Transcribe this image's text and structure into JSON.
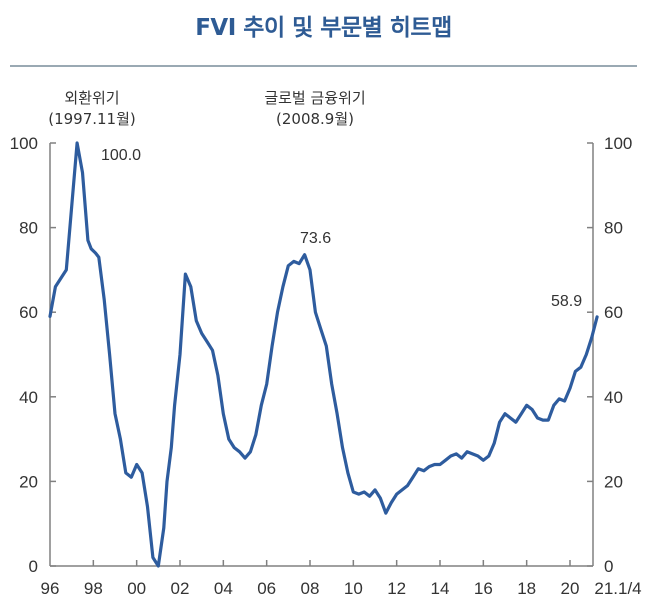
{
  "title": "FVI 추이 및 부문별 히트맵",
  "colors": {
    "line": "#2e5c9e",
    "title": "#2e5b94",
    "axis": "#808080"
  },
  "annotations": [
    {
      "line1": "외환위기",
      "line2": "(1997.11월)"
    },
    {
      "line1": "글로벌 금융위기",
      "line2": "(2008.9월)"
    }
  ],
  "value_labels": [
    "100.0",
    "73.6",
    "58.9"
  ],
  "chart_data": {
    "type": "line",
    "title": "FVI 추이 및 부문별 히트맵",
    "xlabel": "",
    "ylabel": "",
    "ylim": [
      0,
      100
    ],
    "xlim": [
      1996,
      2021.25
    ],
    "y_ticks": [
      "0",
      "20",
      "40",
      "60",
      "80",
      "100"
    ],
    "y_ticks_right": [
      "0",
      "20",
      "40",
      "60",
      "80",
      "100"
    ],
    "x_ticks": [
      {
        "v": 1996,
        "label": "96"
      },
      {
        "v": 1998,
        "label": "98"
      },
      {
        "v": 2000,
        "label": "00"
      },
      {
        "v": 2002,
        "label": "02"
      },
      {
        "v": 2004,
        "label": "04"
      },
      {
        "v": 2006,
        "label": "06"
      },
      {
        "v": 2008,
        "label": "08"
      },
      {
        "v": 2010,
        "label": "10"
      },
      {
        "v": 2012,
        "label": "12"
      },
      {
        "v": 2014,
        "label": "14"
      },
      {
        "v": 2016,
        "label": "16"
      },
      {
        "v": 2018,
        "label": "18"
      },
      {
        "v": 2020,
        "label": "20"
      },
      {
        "v": 2021.25,
        "label": "21.1/4"
      }
    ],
    "grid": false,
    "series": [
      {
        "name": "FVI",
        "x": [
          1996.0,
          1996.25,
          1996.5,
          1996.75,
          1997.0,
          1997.25,
          1997.5,
          1997.75,
          1997.9,
          1998.1,
          1998.25,
          1998.5,
          1998.75,
          1999.0,
          1999.25,
          1999.5,
          1999.75,
          2000.0,
          2000.25,
          2000.5,
          2000.75,
          2001.0,
          2001.25,
          2001.4,
          2001.6,
          2001.75,
          2002.0,
          2002.25,
          2002.5,
          2002.75,
          2003.0,
          2003.25,
          2003.5,
          2003.75,
          2004.0,
          2004.25,
          2004.5,
          2004.75,
          2005.0,
          2005.25,
          2005.5,
          2005.75,
          2006.0,
          2006.25,
          2006.5,
          2006.75,
          2007.0,
          2007.25,
          2007.5,
          2007.75,
          2008.0,
          2008.25,
          2008.5,
          2008.75,
          2009.0,
          2009.25,
          2009.5,
          2009.75,
          2010.0,
          2010.25,
          2010.5,
          2010.75,
          2011.0,
          2011.25,
          2011.5,
          2011.75,
          2012.0,
          2012.25,
          2012.5,
          2012.75,
          2013.0,
          2013.25,
          2013.5,
          2013.75,
          2014.0,
          2014.25,
          2014.5,
          2014.75,
          2015.0,
          2015.25,
          2015.5,
          2015.75,
          2016.0,
          2016.25,
          2016.5,
          2016.75,
          2017.0,
          2017.25,
          2017.5,
          2017.75,
          2018.0,
          2018.25,
          2018.5,
          2018.75,
          2019.0,
          2019.25,
          2019.5,
          2019.75,
          2020.0,
          2020.25,
          2020.5,
          2020.75,
          2021.0,
          2021.25
        ],
        "y": [
          59,
          66,
          68,
          70,
          85,
          100,
          93,
          77,
          75,
          74,
          73,
          63,
          50,
          36,
          30,
          22,
          21,
          24,
          22,
          14,
          2,
          0,
          9,
          20,
          28,
          38,
          50,
          69,
          66,
          58,
          55,
          53,
          51,
          45,
          36,
          30,
          28,
          27,
          25.5,
          27,
          31,
          38,
          43,
          52,
          60,
          66,
          71,
          72,
          71.5,
          73.6,
          70,
          60,
          56,
          52,
          43,
          36,
          28,
          22,
          17.5,
          17,
          17.5,
          16.5,
          18,
          16,
          12.5,
          15,
          17,
          18,
          19,
          21,
          23,
          22.5,
          23.5,
          24,
          24,
          25,
          26,
          26.5,
          25.5,
          27,
          26.5,
          26,
          25,
          26,
          29,
          34,
          36,
          35,
          34,
          36,
          38,
          37,
          35,
          34.5,
          34.5,
          38,
          39.5,
          39,
          42,
          46,
          47,
          50,
          54,
          58.9
        ]
      }
    ]
  }
}
